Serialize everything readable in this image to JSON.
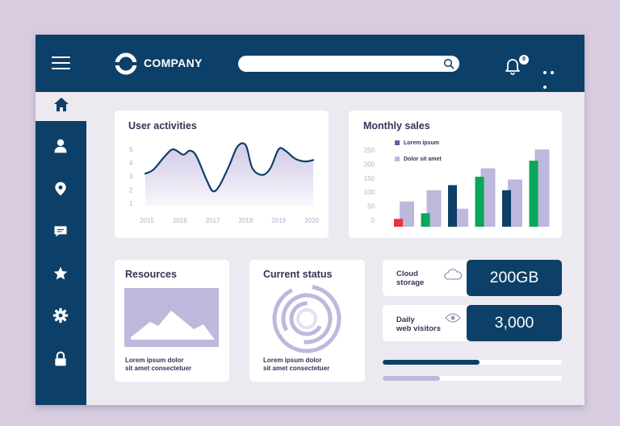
{
  "header": {
    "company": "COMPANY",
    "search_placeholder": "",
    "notifications": "9"
  },
  "sidebar": {
    "items": [
      "home-icon",
      "user-icon",
      "location-icon",
      "chat-icon",
      "star-icon",
      "gear-icon",
      "lock-icon"
    ],
    "active": "home-icon"
  },
  "user_activities": {
    "title": "User activities",
    "chart_data": {
      "type": "area",
      "title": "User activities",
      "x": [
        2015,
        2016,
        2017,
        2018,
        2019,
        2020
      ],
      "y_ticks": [
        1,
        2,
        3,
        4,
        5
      ],
      "ylim": [
        1,
        5
      ],
      "series": [
        {
          "x": [
            2014.95,
            2015.2,
            2015.55,
            2015.8,
            2016.1,
            2016.3,
            2016.5,
            2016.8,
            2017.0,
            2017.2,
            2017.5,
            2017.75,
            2018.0,
            2018.2,
            2018.5,
            2018.75,
            2019.0,
            2019.2,
            2019.5,
            2019.8,
            2020.05
          ],
          "y": [
            3.2,
            3.5,
            4.5,
            5.0,
            4.6,
            4.9,
            4.5,
            2.8,
            1.9,
            2.3,
            3.8,
            5.2,
            5.3,
            3.6,
            3.1,
            3.6,
            5.0,
            4.9,
            4.3,
            4.1,
            4.2
          ]
        }
      ],
      "colors": {
        "line": "#0d4068",
        "fill": "#cfc9e6"
      }
    }
  },
  "monthly_sales": {
    "title": "Monthly sales",
    "chart_data": {
      "type": "bar",
      "title": "Monthly sales",
      "y_ticks": [
        0,
        50,
        100,
        150,
        200,
        250
      ],
      "ylim": [
        0,
        280
      ],
      "legend": [
        "Lorem ipsum",
        "Dolor sit amet"
      ],
      "legend_position": "top-left",
      "groups": [
        {
          "primary": 28,
          "secondary": 90,
          "primary_color": "#e8323c"
        },
        {
          "primary": 48,
          "secondary": 130,
          "primary_color": "#0aa65a"
        },
        {
          "primary": 148,
          "secondary": 64,
          "primary_color": "#0d4068"
        },
        {
          "primary": 178,
          "secondary": 208,
          "primary_color": "#0aa65a"
        },
        {
          "primary": 130,
          "secondary": 168,
          "primary_color": "#0d4068"
        },
        {
          "primary": 235,
          "secondary": 275,
          "primary_color": "#0aa65a"
        }
      ],
      "colors": {
        "legend_primary": "#6b5aa6",
        "secondary": "#bdb8dc"
      }
    }
  },
  "resources": {
    "title": "Resources",
    "caption_line1": "Lorem ipsum dolor",
    "caption_line2": "sit amet consectetuer"
  },
  "current_status": {
    "title": "Current status",
    "caption_line1": "Lorem ipsum dolor",
    "caption_line2": "sit amet consectetuer"
  },
  "stats": [
    {
      "label_line1": "Cloud",
      "label_line2": "storage",
      "value": "200GB",
      "icon": "cloud-icon"
    },
    {
      "label_line1": "Daily",
      "label_line2": "web visitors",
      "value": "3,000",
      "icon": "eye-icon"
    }
  ],
  "progress": [
    {
      "value": 0.54,
      "color": "#0d4068"
    },
    {
      "value": 0.32,
      "color": "#bdb8dc"
    }
  ]
}
